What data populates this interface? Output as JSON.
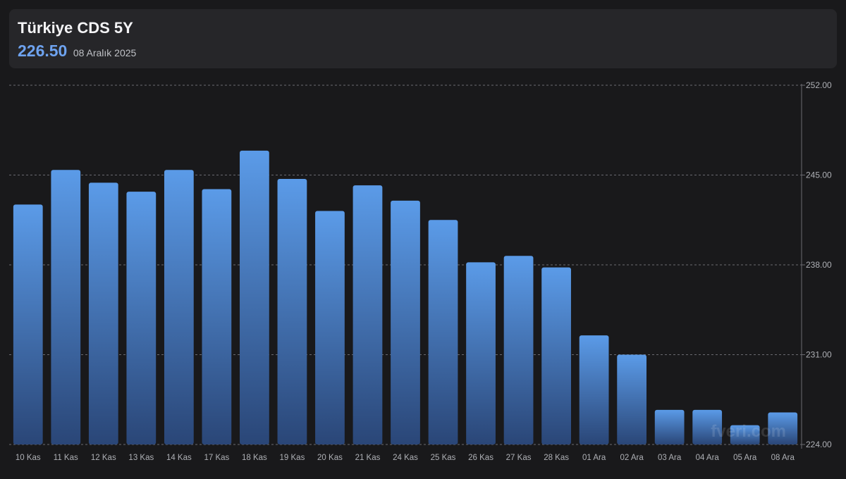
{
  "header": {
    "title": "Türkiye CDS 5Y",
    "value": "226.50",
    "date": "08 Aralık 2025"
  },
  "watermark": "fveri.com",
  "colors": {
    "background": "#19191b",
    "card": "#262629",
    "accent": "#6ea3f0",
    "bar_top": "#5b9be8",
    "bar_bottom": "#2a4677"
  },
  "chart_data": {
    "type": "bar",
    "categories": [
      "10 Kas",
      "11 Kas",
      "12 Kas",
      "13 Kas",
      "14 Kas",
      "17 Kas",
      "18 Kas",
      "19 Kas",
      "20 Kas",
      "21 Kas",
      "24 Kas",
      "25 Kas",
      "26 Kas",
      "27 Kas",
      "28 Kas",
      "01 Ara",
      "02 Ara",
      "03 Ara",
      "04 Ara",
      "05 Ara",
      "08 Ara"
    ],
    "values": [
      242.7,
      245.4,
      244.4,
      243.7,
      245.4,
      243.9,
      246.9,
      244.7,
      242.2,
      244.2,
      243.0,
      241.5,
      238.2,
      238.7,
      237.8,
      232.5,
      231.0,
      226.7,
      226.7,
      225.5,
      226.5
    ],
    "yticks": [
      "224.00",
      "231.00",
      "238.00",
      "245.00",
      "252.00"
    ],
    "ylim": [
      224,
      252
    ],
    "grid": true,
    "y_axis_position": "right"
  }
}
